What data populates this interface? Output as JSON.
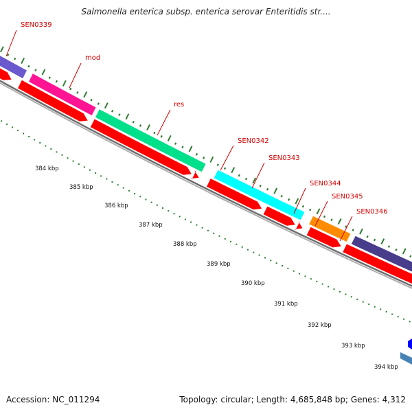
{
  "title": "Salmonella enterica subsp. enterica serovar Enteritidis str....",
  "footer": {
    "accession": "Accession: NC_011294",
    "summary": "Topology: circular; Length: 4,685,848 bp; Genes: 4,312"
  },
  "gene_labels": [
    "SEN0339",
    "mod",
    "res",
    "SEN0342",
    "SEN0343",
    "SEN0344",
    "SEN0345",
    "SEN0346"
  ],
  "scale_labels": [
    "384 kbp",
    "385 kbp",
    "386 kbp",
    "387 kbp",
    "388 kbp",
    "389 kbp",
    "390 kbp",
    "391 kbp",
    "392 kbp",
    "393 kbp",
    "394 kbp"
  ],
  "colors": {
    "label_red": "#d40000",
    "cds_red": "#ff0000",
    "backbone": "#808080",
    "tick_green": "#2e7d32",
    "mod": "#ff1493",
    "res": "#00e08a",
    "sen0343": "#00ffff",
    "sen0345": "#ff8c00",
    "sen0346": "#483d8b",
    "sen0339": "#6a5acd",
    "small_blue": "#0000ff",
    "steel_blue": "#4682b4"
  }
}
